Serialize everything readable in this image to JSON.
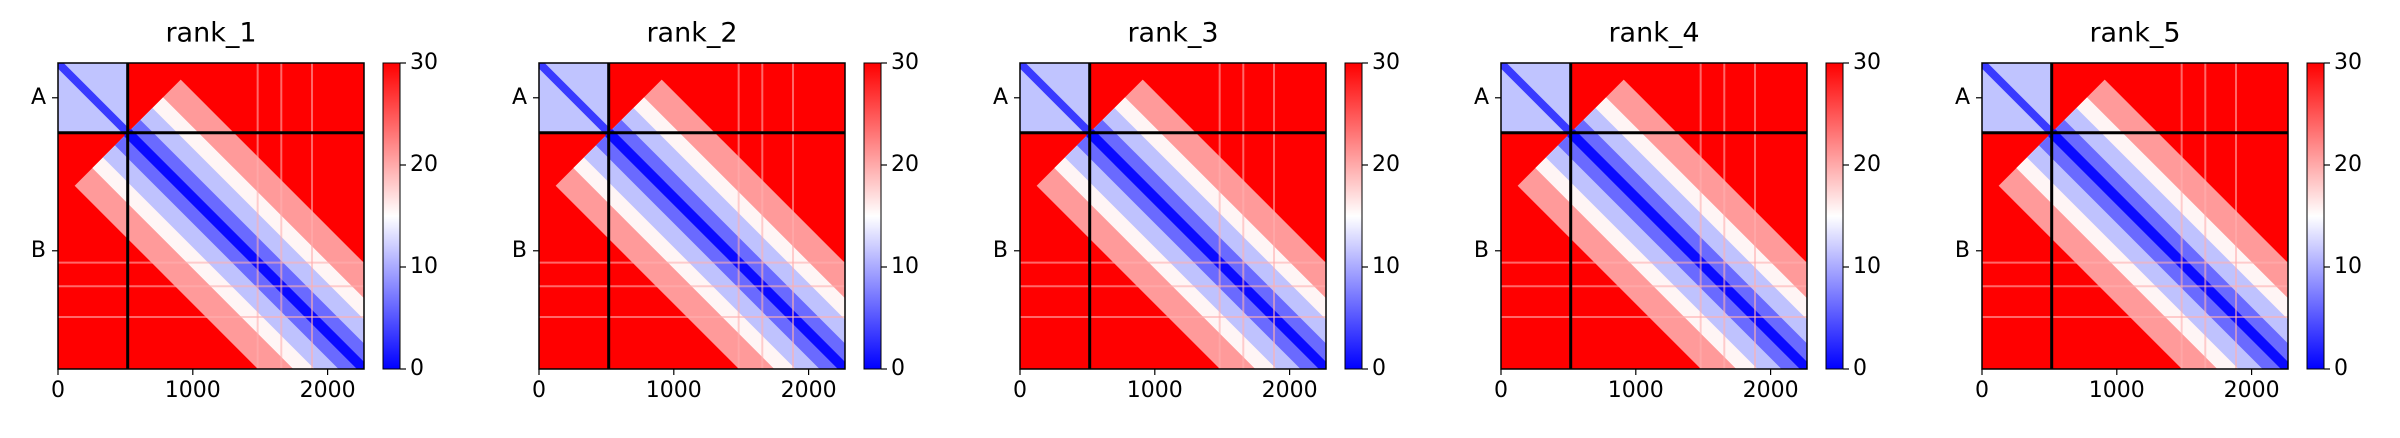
{
  "chart_data": [
    {
      "type": "heatmap",
      "title": "rank_1",
      "xlim": [
        0,
        2270
      ],
      "xticks": [
        0,
        1000,
        2000
      ],
      "ylim": [
        2270,
        0
      ],
      "yticks": [
        {
          "value": 258,
          "label": "A"
        },
        {
          "value": 1393,
          "label": "B"
        }
      ],
      "chain_boundaries": [
        517
      ],
      "clim": [
        0,
        30
      ],
      "cticks": [
        0,
        10,
        20,
        30
      ],
      "colormap": [
        "#0000ff",
        "#ffffff",
        "#ff0000"
      ]
    },
    {
      "type": "heatmap",
      "title": "rank_2",
      "xlim": [
        0,
        2270
      ],
      "xticks": [
        0,
        1000,
        2000
      ],
      "ylim": [
        2270,
        0
      ],
      "yticks": [
        {
          "value": 258,
          "label": "A"
        },
        {
          "value": 1393,
          "label": "B"
        }
      ],
      "chain_boundaries": [
        517
      ],
      "clim": [
        0,
        30
      ],
      "cticks": [
        0,
        10,
        20,
        30
      ],
      "colormap": [
        "#0000ff",
        "#ffffff",
        "#ff0000"
      ]
    },
    {
      "type": "heatmap",
      "title": "rank_3",
      "xlim": [
        0,
        2270
      ],
      "xticks": [
        0,
        1000,
        2000
      ],
      "ylim": [
        2270,
        0
      ],
      "yticks": [
        {
          "value": 258,
          "label": "A"
        },
        {
          "value": 1393,
          "label": "B"
        }
      ],
      "chain_boundaries": [
        517
      ],
      "clim": [
        0,
        30
      ],
      "cticks": [
        0,
        10,
        20,
        30
      ],
      "colormap": [
        "#0000ff",
        "#ffffff",
        "#ff0000"
      ]
    },
    {
      "type": "heatmap",
      "title": "rank_4",
      "xlim": [
        0,
        2270
      ],
      "xticks": [
        0,
        1000,
        2000
      ],
      "ylim": [
        2270,
        0
      ],
      "yticks": [
        {
          "value": 258,
          "label": "A"
        },
        {
          "value": 1393,
          "label": "B"
        }
      ],
      "chain_boundaries": [
        517
      ],
      "clim": [
        0,
        30
      ],
      "cticks": [
        0,
        10,
        20,
        30
      ],
      "colormap": [
        "#0000ff",
        "#ffffff",
        "#ff0000"
      ]
    },
    {
      "type": "heatmap",
      "title": "rank_5",
      "xlim": [
        0,
        2270
      ],
      "xticks": [
        0,
        1000,
        2000
      ],
      "ylim": [
        2270,
        0
      ],
      "yticks": [
        {
          "value": 258,
          "label": "A"
        },
        {
          "value": 1393,
          "label": "B"
        }
      ],
      "chain_boundaries": [
        517
      ],
      "clim": [
        0,
        30
      ],
      "cticks": [
        0,
        10,
        20,
        30
      ],
      "colormap": [
        "#0000ff",
        "#ffffff",
        "#ff0000"
      ]
    }
  ]
}
